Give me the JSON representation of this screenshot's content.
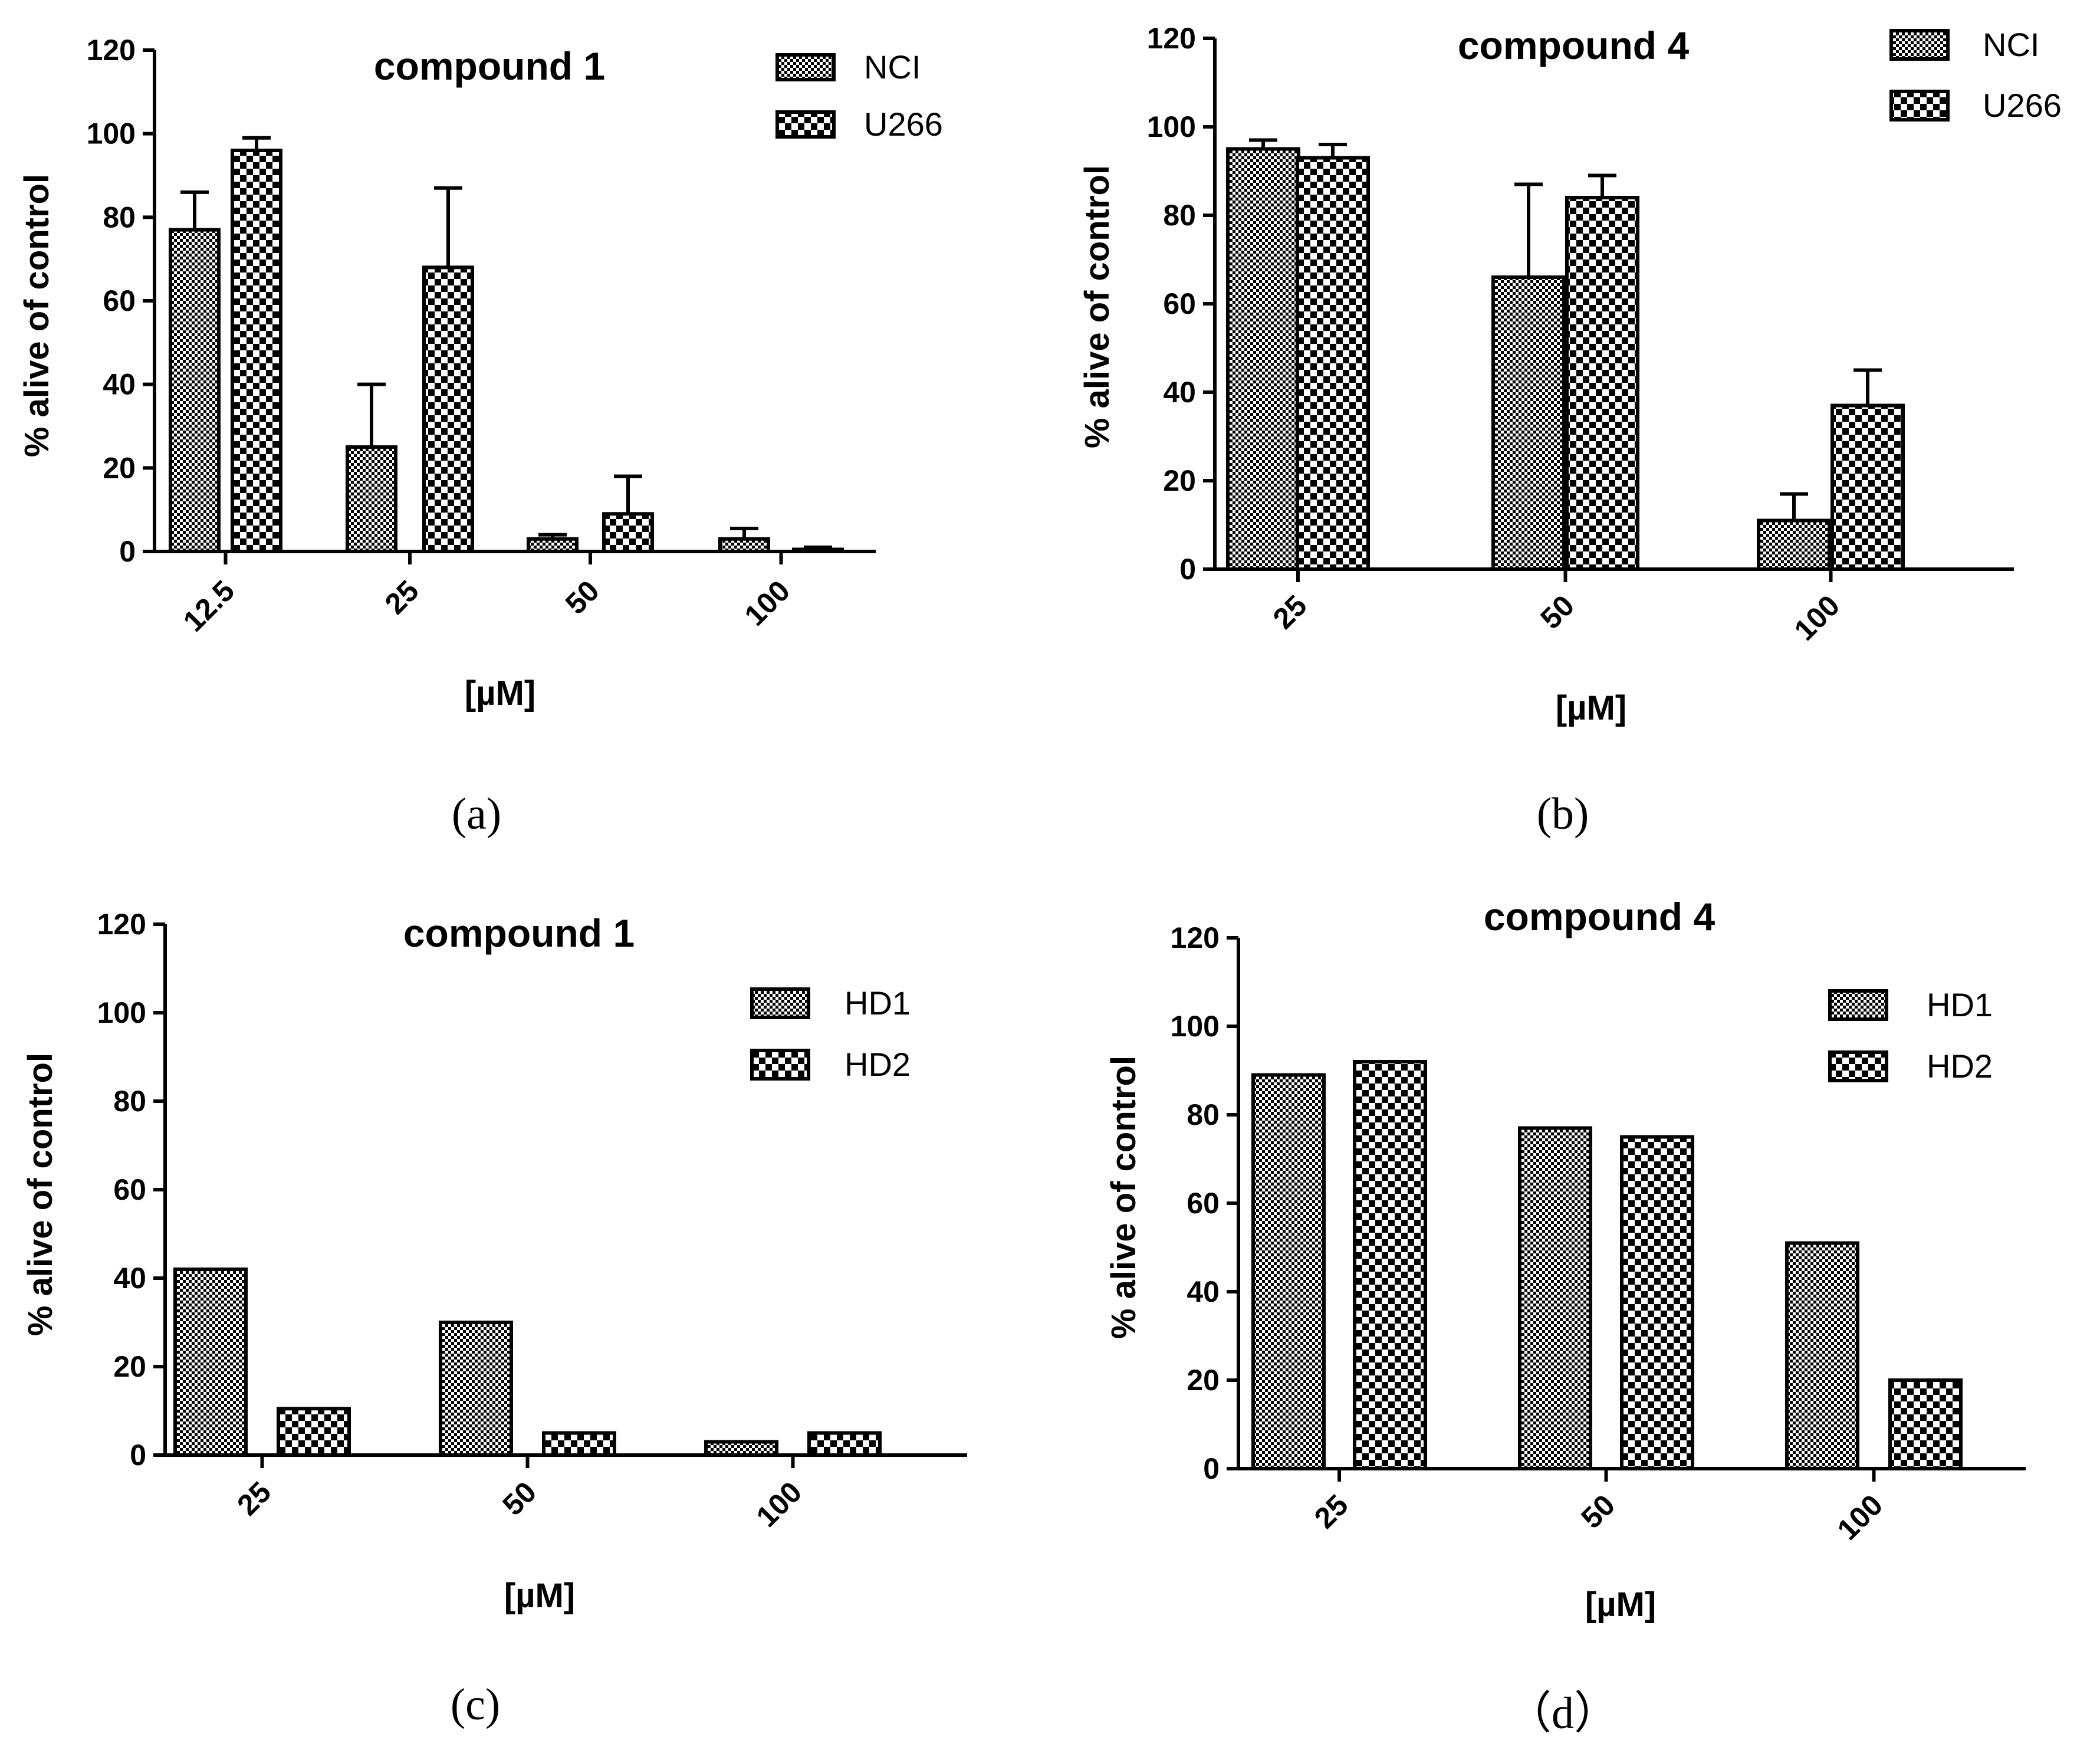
{
  "figure": {
    "panels": [
      {
        "id": "a",
        "caption": "(a)",
        "chart_data": {
          "type": "bar",
          "title": "compound 1",
          "xlabel": "[µM]",
          "ylabel": "% alive of control",
          "ylim": [
            0,
            120
          ],
          "yticks": [
            0,
            20,
            40,
            60,
            80,
            100,
            120
          ],
          "categories": [
            "12.5",
            "25",
            "50",
            "100"
          ],
          "legend_position": "top-right",
          "series": [
            {
              "name": "NCI",
              "pattern": "fine-check",
              "values": [
                77,
                25,
                3,
                3
              ],
              "errors": [
                9,
                15,
                1,
                2.5
              ]
            },
            {
              "name": "U266",
              "pattern": "coarse-check",
              "values": [
                96,
                68,
                9,
                0.5
              ],
              "errors": [
                3,
                19,
                9,
                0.5
              ]
            }
          ]
        }
      },
      {
        "id": "b",
        "caption": "(b)",
        "chart_data": {
          "type": "bar",
          "title": "compound 4",
          "xlabel": "[µM]",
          "ylabel": "% alive of control",
          "ylim": [
            0,
            120
          ],
          "yticks": [
            0,
            20,
            40,
            60,
            80,
            100,
            120
          ],
          "categories": [
            "25",
            "50",
            "100"
          ],
          "legend_position": "top-right",
          "series": [
            {
              "name": "NCI",
              "pattern": "fine-check",
              "values": [
                95,
                66,
                11
              ],
              "errors": [
                2,
                21,
                6
              ]
            },
            {
              "name": "U266",
              "pattern": "coarse-check",
              "values": [
                93,
                84,
                37
              ],
              "errors": [
                3,
                5,
                8
              ]
            }
          ]
        }
      },
      {
        "id": "c",
        "caption": "(c)",
        "chart_data": {
          "type": "bar",
          "title": "compound 1",
          "xlabel": "[µM]",
          "ylabel": "% alive of control",
          "ylim": [
            0,
            120
          ],
          "yticks": [
            0,
            20,
            40,
            60,
            80,
            100,
            120
          ],
          "categories": [
            "25",
            "50",
            "100"
          ],
          "legend_position": "top-right",
          "series": [
            {
              "name": "HD1",
              "pattern": "fine-check",
              "values": [
                42,
                30,
                3
              ],
              "errors": [
                0,
                0,
                0
              ]
            },
            {
              "name": "HD2",
              "pattern": "coarse-check",
              "values": [
                10.5,
                5,
                5
              ],
              "errors": [
                0,
                0,
                0
              ]
            }
          ]
        }
      },
      {
        "id": "d",
        "caption": "（d）",
        "chart_data": {
          "type": "bar",
          "title": "compound 4",
          "xlabel": "[µM]",
          "ylabel": "% alive of control",
          "ylim": [
            0,
            120
          ],
          "yticks": [
            0,
            20,
            40,
            60,
            80,
            100,
            120
          ],
          "categories": [
            "25",
            "50",
            "100"
          ],
          "legend_position": "top-right",
          "series": [
            {
              "name": "HD1",
              "pattern": "fine-check",
              "values": [
                89,
                77,
                51
              ],
              "errors": [
                0,
                0,
                0
              ]
            },
            {
              "name": "HD2",
              "pattern": "coarse-check",
              "values": [
                92,
                75,
                20
              ],
              "errors": [
                0,
                0,
                0
              ]
            }
          ]
        }
      }
    ]
  }
}
